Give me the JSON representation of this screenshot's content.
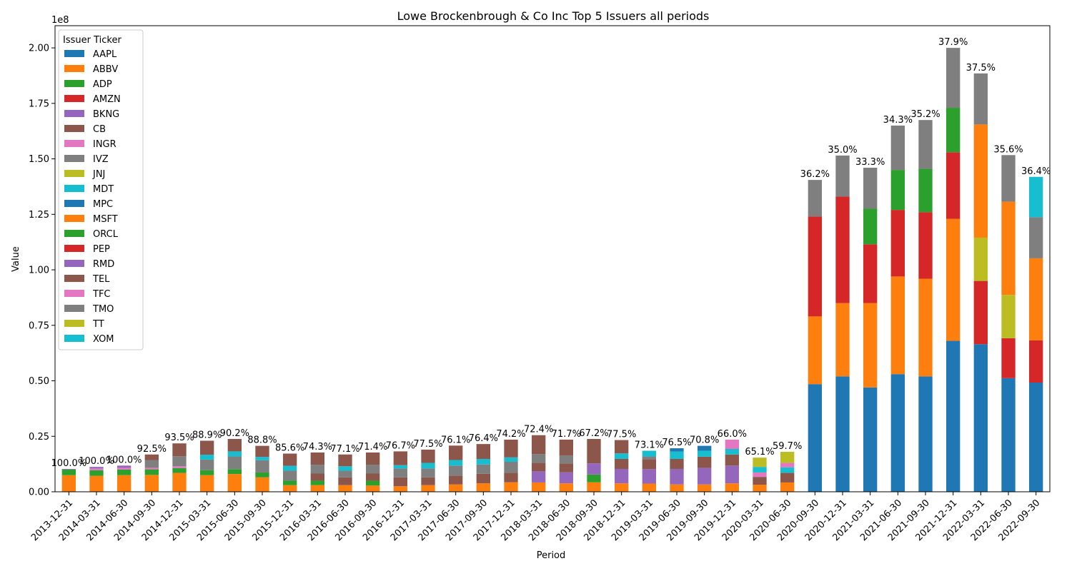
{
  "chart_data": {
    "type": "bar",
    "stacked": true,
    "title": "Lowe Brockenbrough & Co Inc Top 5 Issuers all periods",
    "xlabel": "Period",
    "ylabel": "Value",
    "y_multiplier_label": "1e8",
    "ylim": [
      0,
      2.1
    ],
    "y_ticks": [
      "0.00",
      "0.25",
      "0.50",
      "0.75",
      "1.00",
      "1.25",
      "1.50",
      "1.75",
      "2.00"
    ],
    "legend_title": "Issuer Ticker",
    "legend_position": "upper-left",
    "tickers": [
      "AAPL",
      "ABBV",
      "ADP",
      "AMZN",
      "BKNG",
      "CB",
      "INGR",
      "IVZ",
      "JNJ",
      "MDT",
      "MPC",
      "MSFT",
      "ORCL",
      "PEP",
      "RMD",
      "TEL",
      "TFC",
      "TMO",
      "TT",
      "XOM"
    ],
    "colors": {
      "AAPL": "#1f77b4",
      "ABBV": "#ff7f0e",
      "ADP": "#2ca02c",
      "AMZN": "#d62728",
      "BKNG": "#9467bd",
      "CB": "#8c564b",
      "INGR": "#e377c2",
      "IVZ": "#7f7f7f",
      "JNJ": "#bcbd22",
      "MDT": "#17becf",
      "MPC": "#1f77b4",
      "MSFT": "#ff7f0e",
      "ORCL": "#2ca02c",
      "PEP": "#d62728",
      "RMD": "#9467bd",
      "TEL": "#8c564b",
      "TFC": "#e377c2",
      "TMO": "#7f7f7f",
      "TT": "#bcbd22",
      "XOM": "#17becf"
    },
    "categories": [
      "2013-12-31",
      "2014-03-31",
      "2014-06-30",
      "2014-09-30",
      "2014-12-31",
      "2015-03-31",
      "2015-06-30",
      "2015-09-30",
      "2015-12-31",
      "2016-03-31",
      "2016-06-30",
      "2016-09-30",
      "2016-12-31",
      "2017-03-31",
      "2017-06-30",
      "2017-09-30",
      "2017-12-31",
      "2018-03-31",
      "2018-06-30",
      "2018-09-30",
      "2018-12-31",
      "2019-03-31",
      "2019-06-30",
      "2019-09-30",
      "2019-12-31",
      "2020-03-31",
      "2020-06-30",
      "2020-09-30",
      "2020-12-31",
      "2021-03-31",
      "2021-06-30",
      "2021-09-30",
      "2021-12-31",
      "2022-03-31",
      "2022-06-30",
      "2022-09-30"
    ],
    "bar_labels": [
      "100.0%",
      "100.0%",
      "100.0%",
      "92.5%",
      "93.5%",
      "88.9%",
      "90.2%",
      "88.8%",
      "85.6%",
      "74.3%",
      "77.1%",
      "71.4%",
      "76.7%",
      "77.5%",
      "76.1%",
      "76.4%",
      "74.2%",
      "72.4%",
      "71.7%",
      "67.2%",
      "77.5%",
      "73.1%",
      "76.5%",
      "70.8%",
      "66.0%",
      "65.1%",
      "59.7%",
      "36.2%",
      "35.0%",
      "33.3%",
      "34.3%",
      "35.2%",
      "37.9%",
      "37.5%",
      "35.6%",
      "36.4%"
    ],
    "stacks": [
      [
        [
          "ABBV",
          0.075
        ],
        [
          "ADP",
          0.025
        ],
        [
          "BKNG",
          0.003
        ]
      ],
      [
        [
          "ABBV",
          0.072
        ],
        [
          "ADP",
          0.025
        ],
        [
          "INGR",
          0.008
        ],
        [
          "BKNG",
          0.007
        ]
      ],
      [
        [
          "ABBV",
          0.075
        ],
        [
          "ADP",
          0.025
        ],
        [
          "INGR",
          0.008
        ],
        [
          "BKNG",
          0.01
        ]
      ],
      [
        [
          "ABBV",
          0.076
        ],
        [
          "ADP",
          0.025
        ],
        [
          "INGR",
          0.007
        ],
        [
          "IVZ",
          0.035
        ],
        [
          "CB",
          0.025
        ]
      ],
      [
        [
          "ABBV",
          0.085
        ],
        [
          "ADP",
          0.022
        ],
        [
          "INGR",
          0.008
        ],
        [
          "IVZ",
          0.045
        ],
        [
          "CB",
          0.058
        ]
      ],
      [
        [
          "ABBV",
          0.075
        ],
        [
          "ADP",
          0.022
        ],
        [
          "IVZ",
          0.048
        ],
        [
          "MDT",
          0.022
        ],
        [
          "CB",
          0.063
        ]
      ],
      [
        [
          "ABBV",
          0.08
        ],
        [
          "ADP",
          0.022
        ],
        [
          "IVZ",
          0.057
        ],
        [
          "MDT",
          0.023
        ],
        [
          "CB",
          0.056
        ]
      ],
      [
        [
          "ABBV",
          0.065
        ],
        [
          "ADP",
          0.022
        ],
        [
          "IVZ",
          0.055
        ],
        [
          "MDT",
          0.015
        ],
        [
          "CB",
          0.05
        ]
      ],
      [
        [
          "ABBV",
          0.03
        ],
        [
          "ADP",
          0.02
        ],
        [
          "IVZ",
          0.045
        ],
        [
          "MDT",
          0.022
        ],
        [
          "CB",
          0.055
        ]
      ],
      [
        [
          "ABBV",
          0.03
        ],
        [
          "ADP",
          0.02
        ],
        [
          "CB",
          0.032
        ],
        [
          "IVZ",
          0.04
        ],
        [
          "TEL",
          0.055
        ]
      ],
      [
        [
          "ABBV",
          0.03
        ],
        [
          "CB",
          0.035
        ],
        [
          "IVZ",
          0.03
        ],
        [
          "MDT",
          0.02
        ],
        [
          "TEL",
          0.053
        ]
      ],
      [
        [
          "ABBV",
          0.028
        ],
        [
          "ADP",
          0.022
        ],
        [
          "CB",
          0.032
        ],
        [
          "IVZ",
          0.04
        ],
        [
          "TEL",
          0.055
        ]
      ],
      [
        [
          "ABBV",
          0.025
        ],
        [
          "CB",
          0.04
        ],
        [
          "IVZ",
          0.04
        ],
        [
          "MDT",
          0.015
        ],
        [
          "TEL",
          0.062
        ]
      ],
      [
        [
          "ABBV",
          0.03
        ],
        [
          "CB",
          0.035
        ],
        [
          "IVZ",
          0.04
        ],
        [
          "MDT",
          0.025
        ],
        [
          "TEL",
          0.06
        ]
      ],
      [
        [
          "ABBV",
          0.033
        ],
        [
          "CB",
          0.04
        ],
        [
          "IVZ",
          0.045
        ],
        [
          "MDT",
          0.025
        ],
        [
          "TEL",
          0.065
        ]
      ],
      [
        [
          "ABBV",
          0.038
        ],
        [
          "CB",
          0.043
        ],
        [
          "IVZ",
          0.042
        ],
        [
          "MDT",
          0.025
        ],
        [
          "TEL",
          0.067
        ]
      ],
      [
        [
          "ABBV",
          0.043
        ],
        [
          "CB",
          0.042
        ],
        [
          "IVZ",
          0.05
        ],
        [
          "MDT",
          0.02
        ],
        [
          "TEL",
          0.08
        ]
      ],
      [
        [
          "ABBV",
          0.042
        ],
        [
          "BKNG",
          0.05
        ],
        [
          "CB",
          0.038
        ],
        [
          "IVZ",
          0.04
        ],
        [
          "TEL",
          0.085
        ]
      ],
      [
        [
          "ABBV",
          0.038
        ],
        [
          "BKNG",
          0.05
        ],
        [
          "CB",
          0.04
        ],
        [
          "IVZ",
          0.035
        ],
        [
          "TEL",
          0.072
        ]
      ],
      [
        [
          "ABBV",
          0.043
        ],
        [
          "ADP",
          0.035
        ],
        [
          "BKNG",
          0.05
        ],
        [
          "CB",
          0.11
        ]
      ],
      [
        [
          "ABBV",
          0.038
        ],
        [
          "BKNG",
          0.065
        ],
        [
          "CB",
          0.045
        ],
        [
          "MDT",
          0.025
        ],
        [
          "TEL",
          0.06
        ]
      ],
      [
        [
          "ABBV",
          0.037
        ],
        [
          "BKNG",
          0.065
        ],
        [
          "CB",
          0.045
        ],
        [
          "IVZ",
          0.012
        ],
        [
          "MDT",
          0.026
        ]
      ],
      [
        [
          "ABBV",
          0.033
        ],
        [
          "BKNG",
          0.07
        ],
        [
          "CB",
          0.045
        ],
        [
          "MDT",
          0.033
        ],
        [
          "MPC",
          0.015
        ]
      ],
      [
        [
          "ABBV",
          0.033
        ],
        [
          "BKNG",
          0.075
        ],
        [
          "CB",
          0.05
        ],
        [
          "MDT",
          0.027
        ],
        [
          "MPC",
          0.022
        ]
      ],
      [
        [
          "ABBV",
          0.038
        ],
        [
          "BKNG",
          0.08
        ],
        [
          "CB",
          0.05
        ],
        [
          "MDT",
          0.025
        ],
        [
          "INGR",
          0.042
        ]
      ],
      [
        [
          "ABBV",
          0.032
        ],
        [
          "CB",
          0.035
        ],
        [
          "INGR",
          0.02
        ],
        [
          "MDT",
          0.025
        ],
        [
          "JNJ",
          0.042
        ]
      ],
      [
        [
          "ABBV",
          0.042
        ],
        [
          "CB",
          0.043
        ],
        [
          "MDT",
          0.025
        ],
        [
          "INGR",
          0.02
        ],
        [
          "JNJ",
          0.05
        ]
      ],
      [
        [
          "AAPL",
          0.485
        ],
        [
          "MSFT",
          0.305
        ],
        [
          "AMZN",
          0.45
        ],
        [
          "TMO",
          0.165
        ]
      ],
      [
        [
          "AAPL",
          0.52
        ],
        [
          "MSFT",
          0.33
        ],
        [
          "AMZN",
          0.48
        ],
        [
          "TMO",
          0.185
        ]
      ],
      [
        [
          "AAPL",
          0.47
        ],
        [
          "MSFT",
          0.38
        ],
        [
          "AMZN",
          0.265
        ],
        [
          "ORCL",
          0.16
        ],
        [
          "TMO",
          0.185
        ]
      ],
      [
        [
          "AAPL",
          0.53
        ],
        [
          "MSFT",
          0.44
        ],
        [
          "AMZN",
          0.3
        ],
        [
          "ORCL",
          0.18
        ],
        [
          "TMO",
          0.2
        ]
      ],
      [
        [
          "AAPL",
          0.52
        ],
        [
          "MSFT",
          0.44
        ],
        [
          "AMZN",
          0.3
        ],
        [
          "ORCL",
          0.195
        ],
        [
          "TMO",
          0.22
        ]
      ],
      [
        [
          "AAPL",
          0.68
        ],
        [
          "MSFT",
          0.55
        ],
        [
          "AMZN",
          0.3
        ],
        [
          "ORCL",
          0.2
        ],
        [
          "TMO",
          0.27
        ]
      ],
      [
        [
          "AAPL",
          0.665
        ],
        [
          "PEP",
          0.285
        ],
        [
          "JNJ",
          0.195
        ],
        [
          "MSFT",
          0.51
        ],
        [
          "TMO",
          0.23
        ]
      ],
      [
        [
          "AAPL",
          0.512
        ],
        [
          "PEP",
          0.18
        ],
        [
          "JNJ",
          0.195
        ],
        [
          "MSFT",
          0.42
        ],
        [
          "TMO",
          0.21
        ]
      ],
      [
        [
          "AAPL",
          0.492
        ],
        [
          "PEP",
          0.19
        ],
        [
          "MSFT",
          0.37
        ],
        [
          "TMO",
          0.185
        ],
        [
          "XOM",
          0.182
        ]
      ]
    ]
  }
}
